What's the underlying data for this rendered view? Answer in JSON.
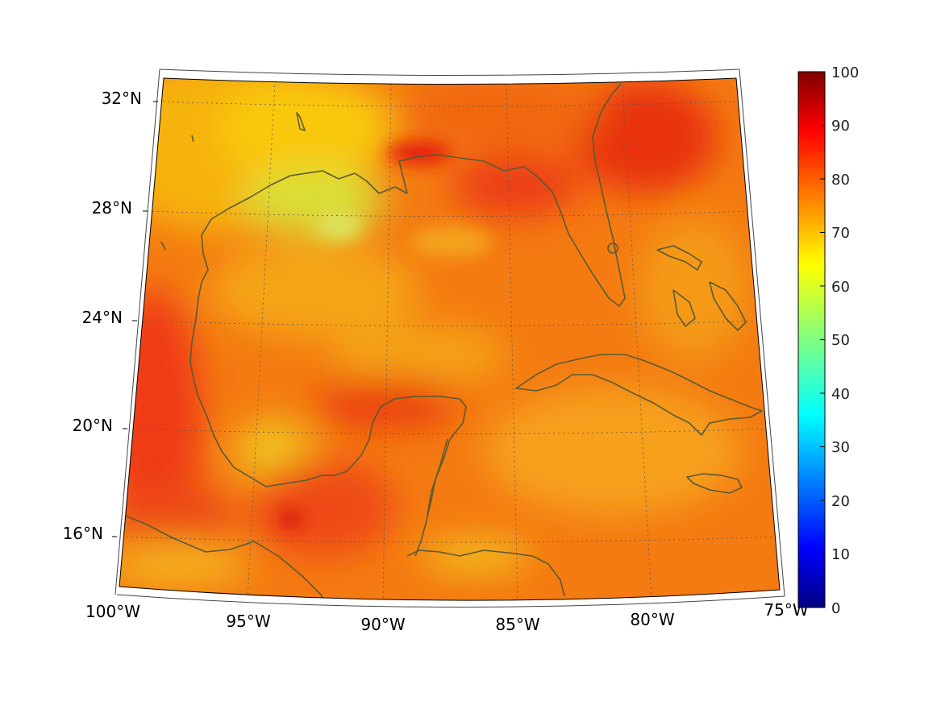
{
  "map": {
    "projection": "conic",
    "variable_range": [
      0,
      100
    ],
    "colormap": "jet",
    "coastline_color": "#5a5a32",
    "graticule": "dotted",
    "lat_labels": [
      "32°N",
      "28°N",
      "24°N",
      "20°N",
      "16°N"
    ],
    "lon_labels": [
      "100°W",
      "95°W",
      "90°W",
      "85°W",
      "80°W",
      "75°W"
    ],
    "lat_values": [
      32,
      28,
      24,
      20,
      16
    ],
    "lon_values": [
      -100,
      -95,
      -90,
      -85,
      -80,
      -75
    ]
  },
  "colorbar": {
    "ticks": [
      "100",
      "90",
      "80",
      "70",
      "60",
      "50",
      "40",
      "30",
      "20",
      "10",
      "0"
    ],
    "colormap": "jet",
    "min": 0,
    "max": 100
  }
}
